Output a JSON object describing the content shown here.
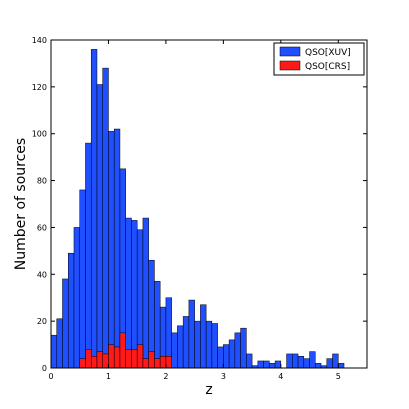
{
  "chart_data": {
    "type": "bar",
    "title": "",
    "xlabel": "z",
    "ylabel": "Number of sources",
    "xlim": [
      0,
      5.5
    ],
    "ylim": [
      0,
      140
    ],
    "xticks": [
      0,
      1,
      2,
      3,
      4,
      5
    ],
    "yticks": [
      0,
      20,
      40,
      60,
      80,
      100,
      120,
      140
    ],
    "grid": false,
    "legend_position": "top-right",
    "bin_width": 0.1,
    "series": [
      {
        "name": "QSO[XUV]",
        "color": "#1f4fff",
        "bin_start": 0.0,
        "values": [
          14,
          21,
          38,
          49,
          60,
          76,
          96,
          136,
          121,
          128,
          101,
          102,
          85,
          64,
          63,
          59,
          64,
          46,
          37,
          26,
          30,
          15,
          18,
          22,
          29,
          20,
          27,
          20,
          19,
          9,
          10,
          12,
          15,
          17,
          6,
          1,
          3,
          3,
          2,
          3,
          0,
          6,
          6,
          5,
          4,
          7,
          2,
          1,
          4,
          6,
          2
        ]
      },
      {
        "name": "QSO[CRS]",
        "color": "#ff1a1a",
        "bin_start": 0.0,
        "values": [
          0,
          0,
          0,
          0,
          0,
          4,
          8,
          5,
          7,
          6,
          10,
          9,
          15,
          8,
          8,
          10,
          4,
          7,
          4,
          5,
          5
        ]
      }
    ]
  }
}
